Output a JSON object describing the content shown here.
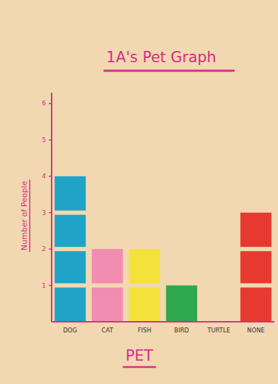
{
  "chart_data": {
    "type": "bar",
    "title": "1A's Pet Graph",
    "x_label": "PET",
    "y_label": "Number of People",
    "categories": [
      "DOG",
      "CAT",
      "FISH",
      "BIRD",
      "TURTLE",
      "NONE"
    ],
    "values": [
      4,
      2,
      2,
      1,
      0,
      3
    ],
    "colors": [
      "#1fa3c6",
      "#f08db0",
      "#f3e23c",
      "#2ea84c",
      "#8a6fc0",
      "#e63a30"
    ],
    "ylim": [
      0,
      6.3
    ],
    "yticks": [
      1,
      2,
      3,
      4,
      5,
      6
    ],
    "grid": false
  }
}
